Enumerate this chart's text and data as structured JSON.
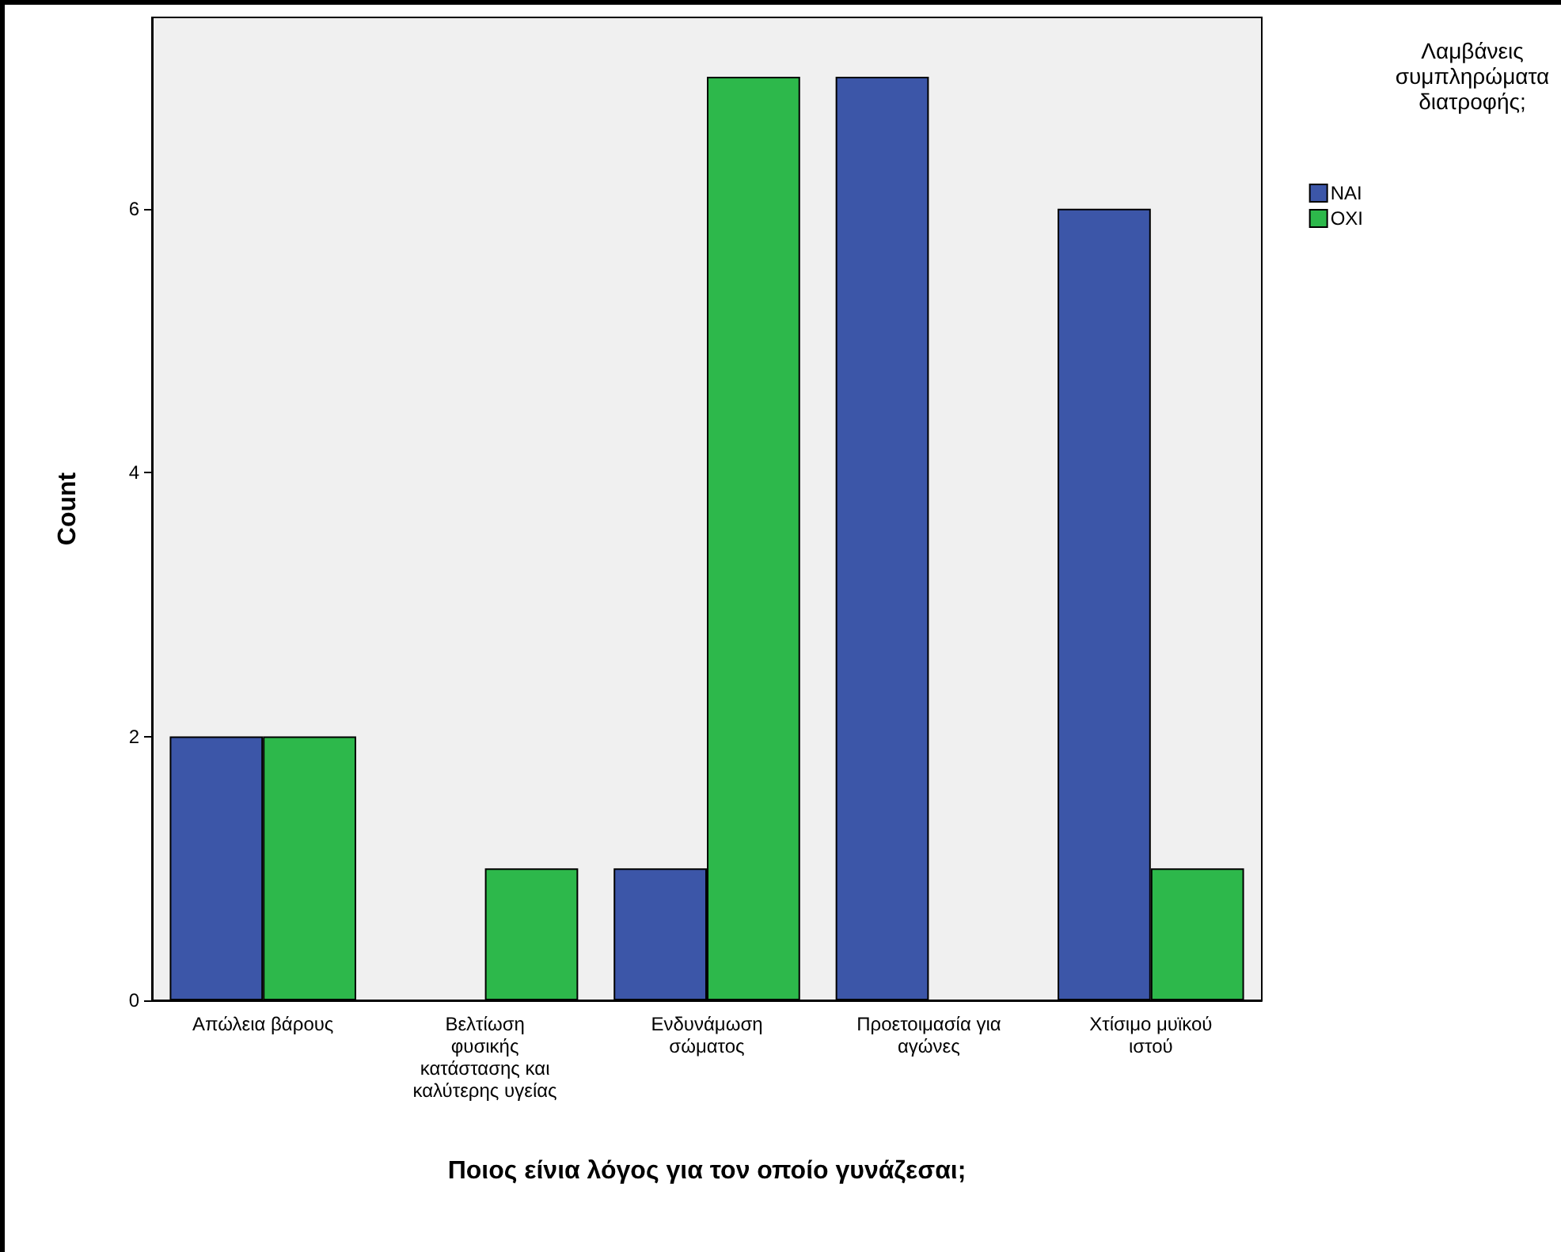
{
  "chart_data": {
    "type": "bar",
    "xlabel": "Ποιος είνια λόγος για τον οποίο γυνάζεσαι;",
    "ylabel": "Count",
    "legend_title": "Λαμβάνεις συμπληρώματα διατροφής;",
    "categories": [
      "Απώλεια βάρους",
      "Βελτίωση φυσικής κατάστασης και καλύτερης υγείας",
      "Ενδυνάμωση σώματος",
      "Προετοιμασία για αγώνες",
      "Χτίσιμο μυϊκού ιστού"
    ],
    "series": [
      {
        "name": "ΝΑΙ",
        "color": "#3c56a8",
        "values": [
          2,
          null,
          1,
          7,
          6
        ]
      },
      {
        "name": "ΟΧΙ",
        "color": "#2db84b",
        "values": [
          2,
          1,
          7,
          null,
          1
        ]
      }
    ],
    "ylim": [
      0,
      7.45
    ],
    "yticks": [
      0,
      2,
      4,
      6
    ],
    "grid": false,
    "legend": "top right"
  }
}
